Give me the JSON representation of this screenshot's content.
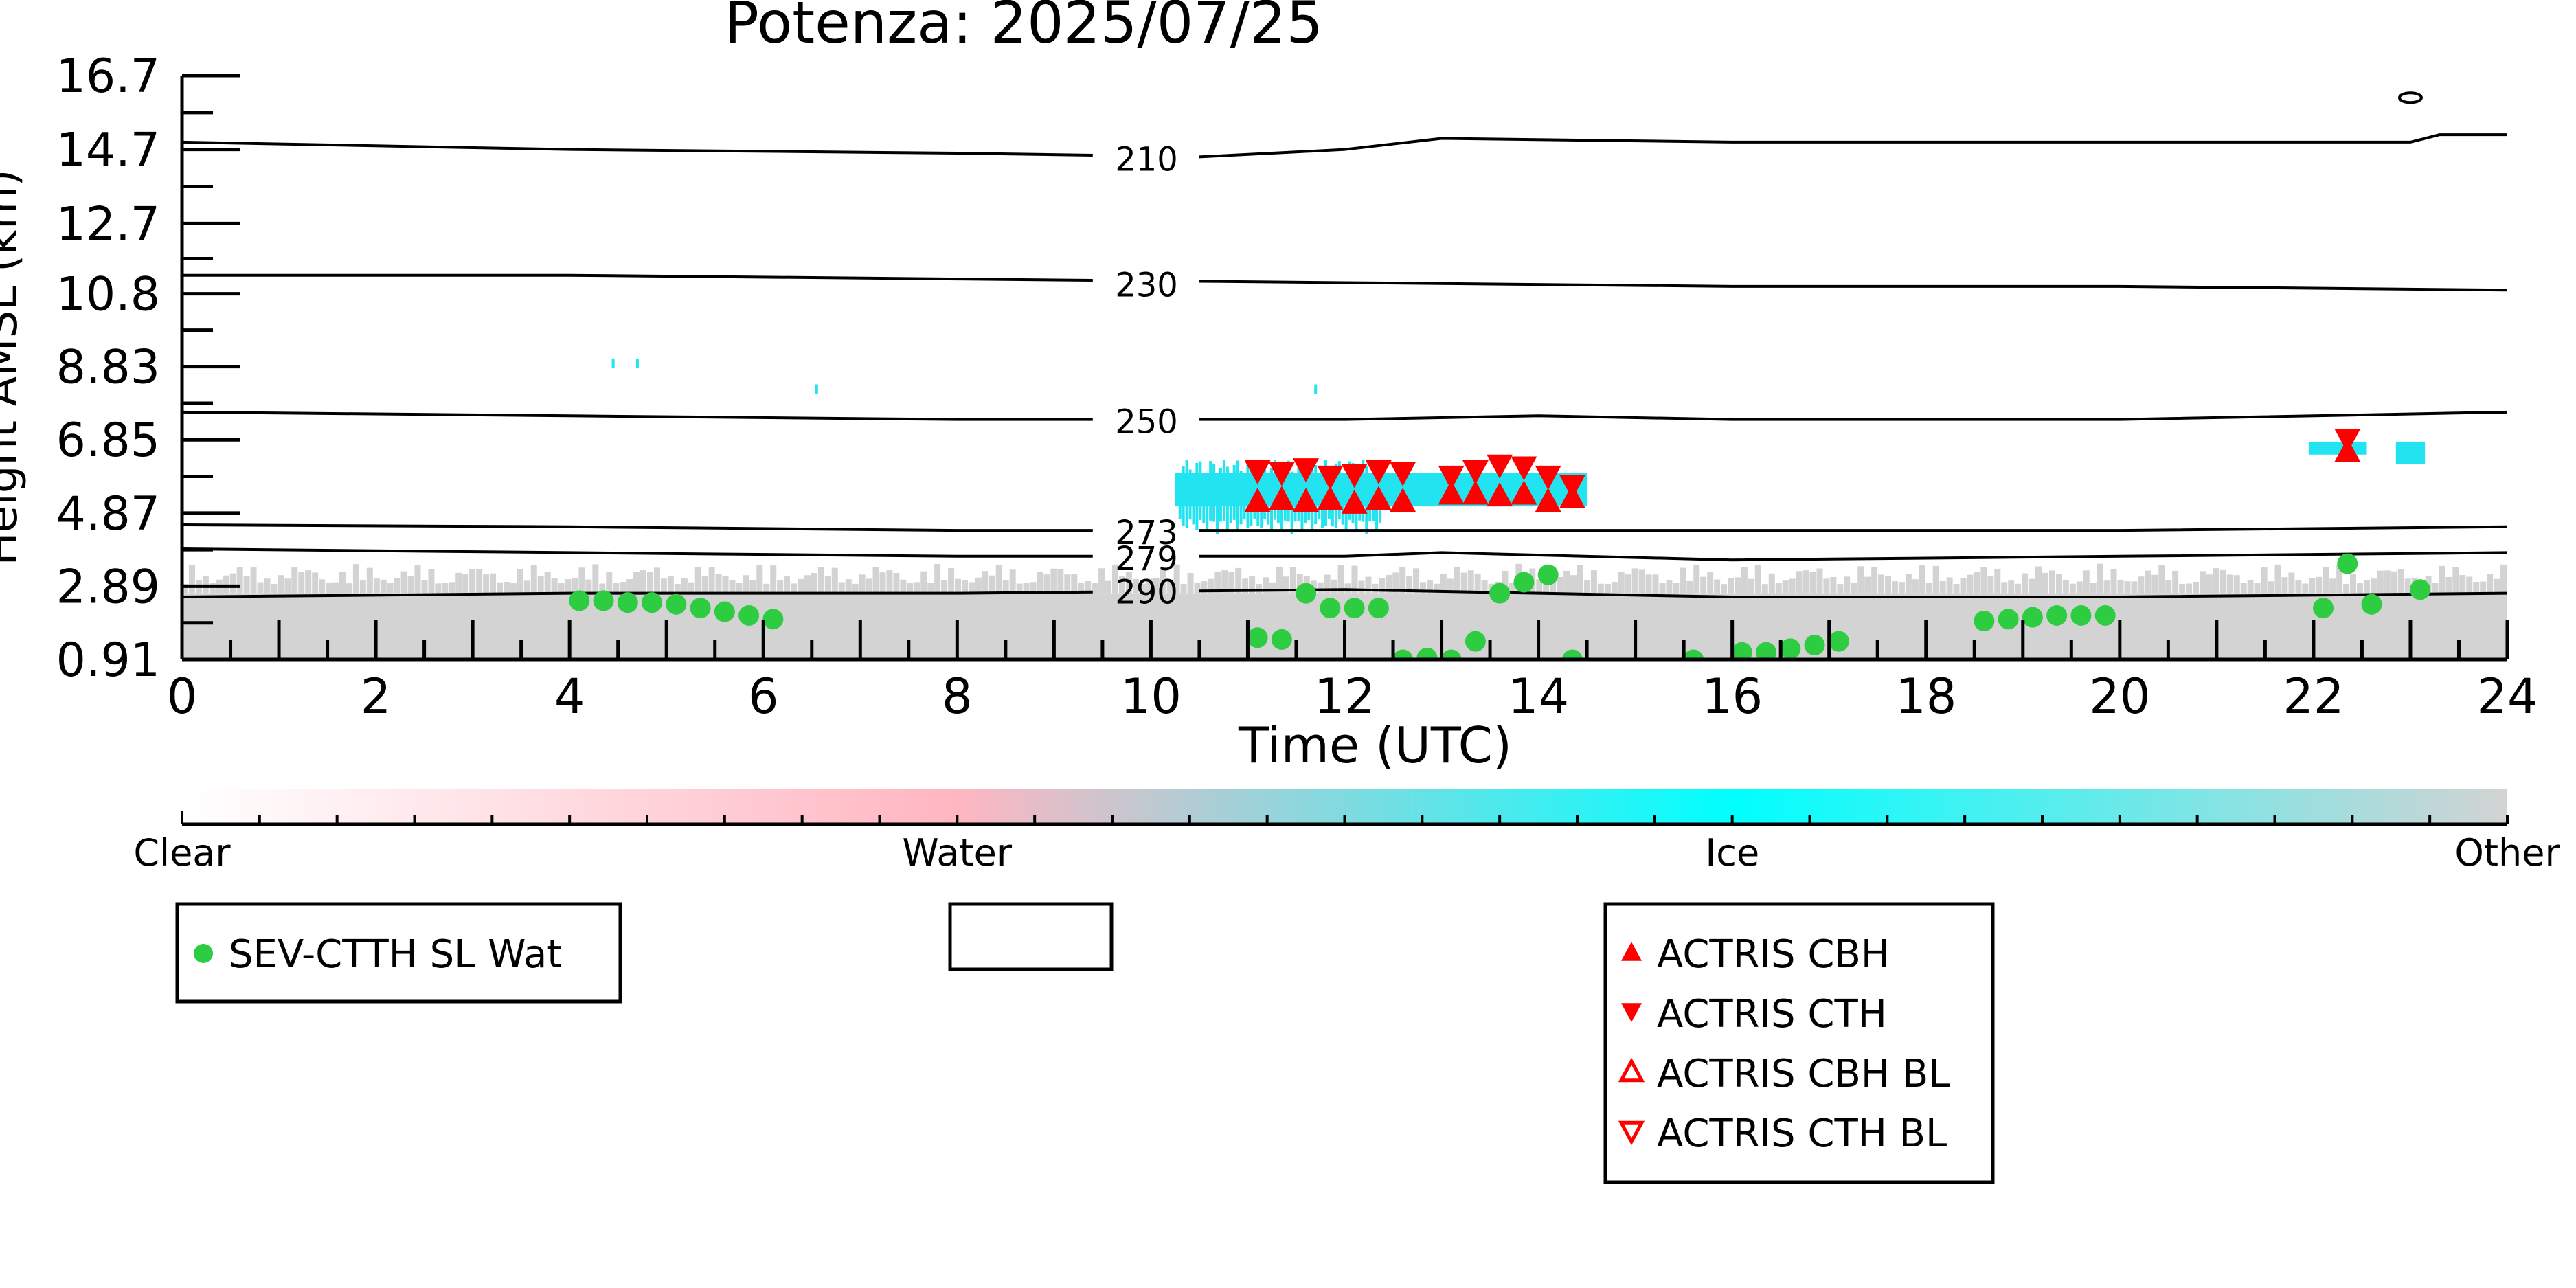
{
  "chart_data": {
    "type": "scatter",
    "title": "Potenza: 2025/07/25",
    "xlabel": "Time (UTC)",
    "ylabel": "Height AMSL (km)",
    "xlim": [
      0,
      24
    ],
    "ylim": [
      0.91,
      16.7
    ],
    "x_ticks": [
      "0",
      "2",
      "4",
      "6",
      "8",
      "10",
      "12",
      "14",
      "16",
      "18",
      "20",
      "22",
      "24"
    ],
    "y_ticks": [
      "0.91",
      "2.89",
      "4.87",
      "6.85",
      "8.83",
      "10.8",
      "12.7",
      "14.7",
      "16.7"
    ],
    "grid": false,
    "background_fill": {
      "category": "Other",
      "color": "#d3d3d3",
      "top_km": 2.7
    },
    "temperature_contours": [
      {
        "label": "210",
        "label_x": 9.6,
        "x": [
          0,
          4,
          8,
          10.5,
          12,
          13,
          16,
          20,
          23,
          23.3,
          24
        ],
        "y": [
          14.9,
          14.7,
          14.6,
          14.5,
          14.7,
          15.0,
          14.9,
          14.9,
          14.9,
          15.1,
          15.1
        ]
      },
      {
        "label": "230",
        "label_x": 9.6,
        "x": [
          0,
          4,
          8,
          12,
          16,
          20,
          24
        ],
        "y": [
          11.3,
          11.3,
          11.2,
          11.1,
          11.0,
          11.0,
          10.9
        ]
      },
      {
        "label": "250",
        "label_x": 9.6,
        "x": [
          0,
          4,
          8,
          12,
          14,
          16,
          20,
          24
        ],
        "y": [
          7.6,
          7.5,
          7.4,
          7.4,
          7.5,
          7.4,
          7.4,
          7.6
        ]
      },
      {
        "label": "273",
        "label_x": 9.6,
        "x": [
          0,
          4,
          8,
          12,
          16,
          20,
          24
        ],
        "y": [
          4.55,
          4.5,
          4.4,
          4.4,
          4.4,
          4.4,
          4.5
        ]
      },
      {
        "label": "279",
        "label_x": 9.6,
        "x": [
          0,
          4,
          8,
          12,
          13,
          16,
          20,
          24
        ],
        "y": [
          3.9,
          3.8,
          3.7,
          3.7,
          3.8,
          3.6,
          3.7,
          3.8
        ]
      },
      {
        "label": "290",
        "label_x": 9.6,
        "x": [
          0,
          4,
          8,
          12,
          16,
          20,
          24
        ],
        "y": [
          2.6,
          2.7,
          2.7,
          2.8,
          2.6,
          2.6,
          2.7
        ]
      }
    ],
    "ice_regions": [
      {
        "x_start": 10.25,
        "x_end": 14.5,
        "y_low": 5.05,
        "y_high": 5.95
      },
      {
        "x_start": 21.95,
        "x_end": 22.55,
        "y_low": 6.45,
        "y_high": 6.8
      },
      {
        "x_start": 22.85,
        "x_end": 23.15,
        "y_low": 6.2,
        "y_high": 6.8
      }
    ],
    "ice_specks": [
      {
        "x": 4.45,
        "y": 8.9
      },
      {
        "x": 4.7,
        "y": 8.9
      },
      {
        "x": 6.55,
        "y": 8.2
      },
      {
        "x": 11.7,
        "y": 8.2
      }
    ],
    "isolated_contour_marker": {
      "x": 23.0,
      "y": 16.1
    },
    "series": [
      {
        "name": "SEV-CTTH SL Wat",
        "marker": "circle-filled",
        "color": "#2ecc40",
        "points": [
          [
            4.1,
            2.5
          ],
          [
            4.35,
            2.5
          ],
          [
            4.6,
            2.45
          ],
          [
            4.85,
            2.45
          ],
          [
            5.1,
            2.4
          ],
          [
            5.35,
            2.3
          ],
          [
            5.6,
            2.2
          ],
          [
            5.85,
            2.1
          ],
          [
            6.1,
            2.0
          ],
          [
            11.1,
            1.5
          ],
          [
            11.35,
            1.45
          ],
          [
            11.6,
            2.7
          ],
          [
            11.85,
            2.3
          ],
          [
            12.1,
            2.3
          ],
          [
            12.35,
            2.3
          ],
          [
            12.6,
            0.9
          ],
          [
            12.85,
            0.95
          ],
          [
            13.1,
            0.9
          ],
          [
            13.35,
            1.4
          ],
          [
            13.6,
            2.7
          ],
          [
            13.85,
            3.0
          ],
          [
            14.1,
            3.2
          ],
          [
            14.35,
            0.9
          ],
          [
            15.6,
            0.9
          ],
          [
            16.1,
            1.1
          ],
          [
            16.35,
            1.1
          ],
          [
            16.6,
            1.2
          ],
          [
            16.85,
            1.3
          ],
          [
            17.1,
            1.4
          ],
          [
            18.6,
            1.95
          ],
          [
            18.85,
            2.0
          ],
          [
            19.1,
            2.05
          ],
          [
            19.35,
            2.1
          ],
          [
            19.6,
            2.1
          ],
          [
            19.85,
            2.1
          ],
          [
            22.1,
            2.3
          ],
          [
            22.35,
            3.5
          ],
          [
            22.6,
            2.4
          ],
          [
            23.1,
            2.8
          ]
        ]
      },
      {
        "name": "ACTRIS CBH",
        "marker": "triangle-up-filled",
        "color": "#ff0000",
        "points": [
          [
            11.1,
            5.2
          ],
          [
            11.35,
            5.25
          ],
          [
            11.6,
            5.2
          ],
          [
            11.85,
            5.25
          ],
          [
            12.1,
            5.15
          ],
          [
            12.35,
            5.25
          ],
          [
            12.6,
            5.2
          ],
          [
            13.1,
            5.4
          ],
          [
            13.35,
            5.4
          ],
          [
            13.6,
            5.35
          ],
          [
            13.85,
            5.4
          ],
          [
            14.1,
            5.2
          ],
          [
            14.35,
            5.3
          ],
          [
            22.35,
            6.55
          ]
        ]
      },
      {
        "name": "ACTRIS CTH",
        "marker": "triangle-down-filled",
        "color": "#ff0000",
        "points": [
          [
            11.1,
            6.0
          ],
          [
            11.35,
            5.95
          ],
          [
            11.6,
            6.05
          ],
          [
            11.85,
            5.85
          ],
          [
            12.1,
            5.9
          ],
          [
            12.35,
            6.0
          ],
          [
            12.6,
            5.95
          ],
          [
            13.1,
            5.85
          ],
          [
            13.35,
            6.0
          ],
          [
            13.6,
            6.15
          ],
          [
            13.85,
            6.1
          ],
          [
            14.1,
            5.85
          ],
          [
            14.35,
            5.6
          ],
          [
            22.35,
            6.85
          ]
        ]
      },
      {
        "name": "ACTRIS CBH BL",
        "marker": "triangle-up-open",
        "color": "#ff0000",
        "points": []
      },
      {
        "name": "ACTRIS CTH BL",
        "marker": "triangle-down-open",
        "color": "#ff0000",
        "points": []
      }
    ],
    "colorbar": {
      "labels": [
        "Clear",
        "Water",
        "Ice",
        "Other"
      ],
      "label_positions": [
        0,
        0.3333,
        0.6667,
        1
      ],
      "stops": [
        "#ffffff",
        "#ffb6c1",
        "#00ffff",
        "#d3d3d3"
      ]
    },
    "legends": [
      {
        "position": "bottom-left",
        "entries": [
          "SEV-CTTH SL Wat"
        ]
      },
      {
        "position": "bottom-center",
        "entries": []
      },
      {
        "position": "bottom-right",
        "entries": [
          "ACTRIS CBH",
          "ACTRIS CTH",
          "ACTRIS CBH BL",
          "ACTRIS CTH BL"
        ]
      }
    ]
  }
}
